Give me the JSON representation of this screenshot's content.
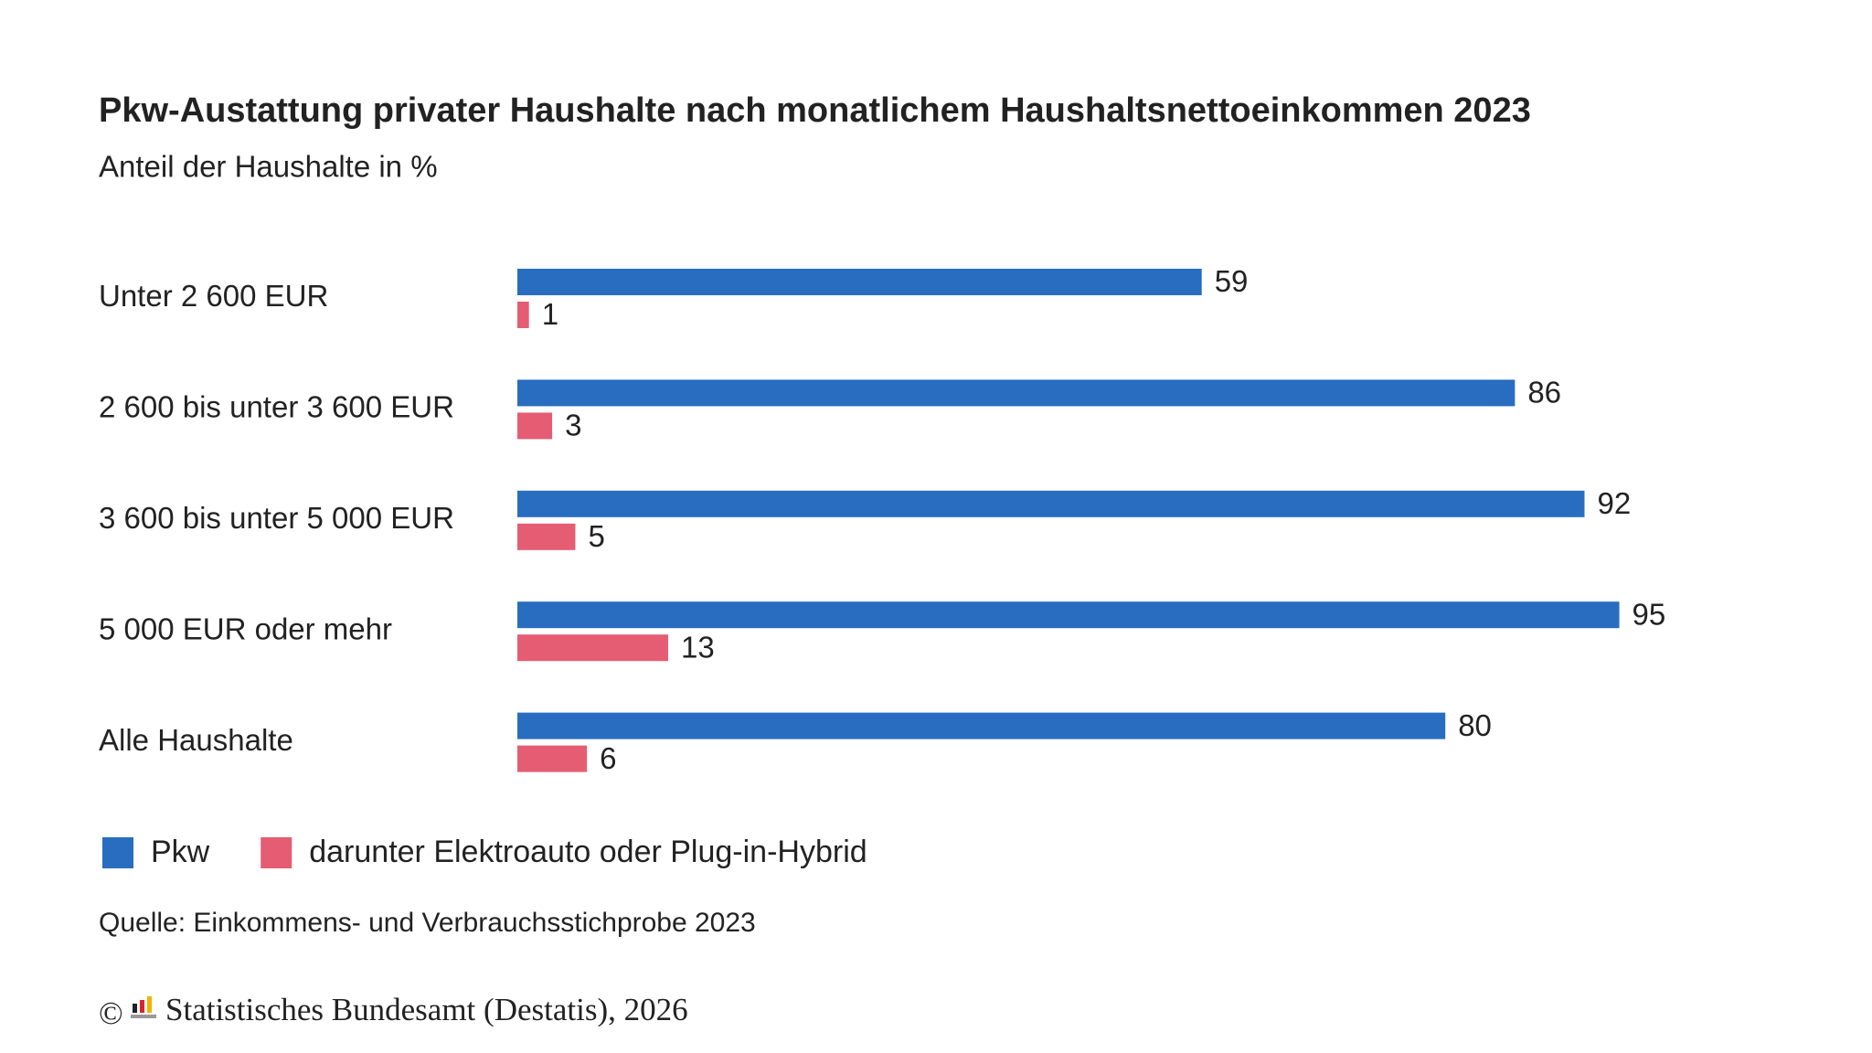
{
  "chart_data": {
    "type": "bar",
    "orientation": "horizontal",
    "title": "Pkw-Austattung privater Haushalte nach monatlichem Haushaltsnettoeinkommen 2023",
    "subtitle": "Anteil der Haushalte in %",
    "categories": [
      "Unter 2 600 EUR",
      "2 600 bis unter 3 600 EUR",
      "3 600 bis unter 5 000 EUR",
      "5 000 EUR oder mehr",
      "Alle Haushalte"
    ],
    "series": [
      {
        "name": "Pkw",
        "color": "#286dc0",
        "values": [
          59,
          86,
          92,
          95,
          80
        ]
      },
      {
        "name": "darunter Elektroauto oder Plug-in-Hybrid",
        "color": "#e55d73",
        "values": [
          1,
          3,
          5,
          13,
          6
        ]
      }
    ],
    "xlim": [
      0,
      100
    ],
    "grid": false,
    "legend": "bottom-left",
    "source": "Quelle: Einkommens- und Verbrauchsstichprobe 2023",
    "copyright_symbol": "©",
    "credit": "Statistisches Bundesamt (Destatis), 2026"
  }
}
